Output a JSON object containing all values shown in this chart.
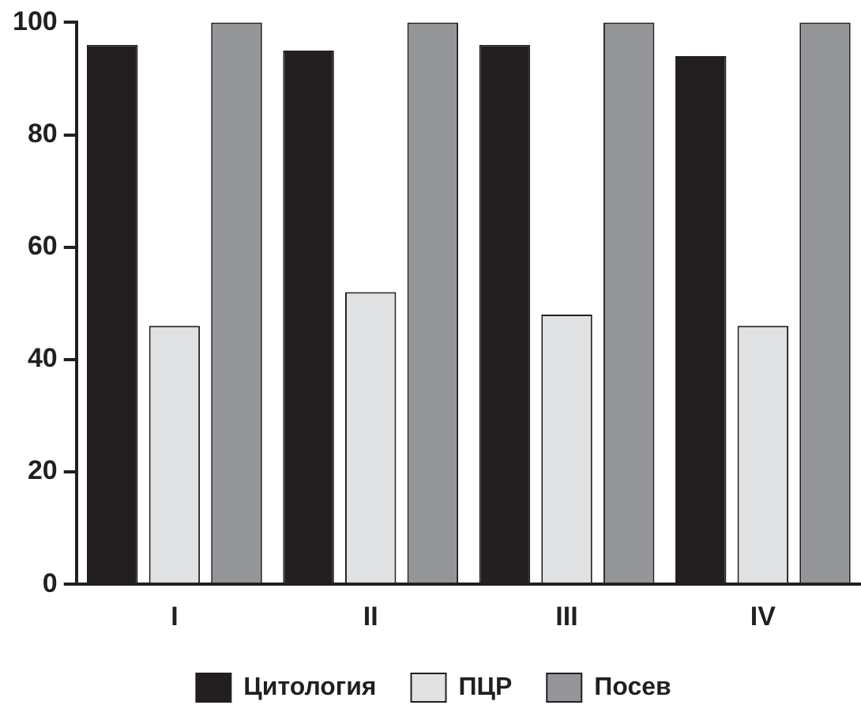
{
  "chart_data": {
    "type": "bar",
    "categories": [
      "I",
      "II",
      "III",
      "IV"
    ],
    "series": [
      {
        "name": "Цитология",
        "color": "#231f20",
        "values": [
          96,
          95,
          96,
          94
        ]
      },
      {
        "name": "ПЦР",
        "color": "#e0e1e3",
        "values": [
          46,
          52,
          48,
          46
        ]
      },
      {
        "name": "Посев",
        "color": "#939598",
        "values": [
          100,
          100,
          100,
          100
        ]
      }
    ],
    "ylim": [
      0,
      100
    ],
    "yticks": [
      0,
      20,
      40,
      60,
      80,
      100
    ],
    "legend": "bottom"
  }
}
